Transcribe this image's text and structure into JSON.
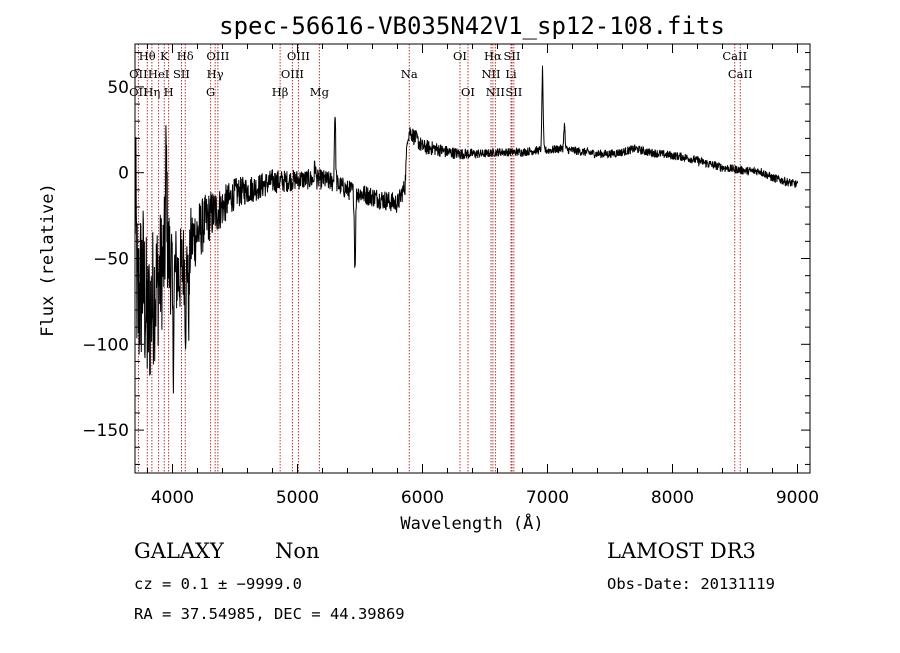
{
  "chart_data": {
    "type": "line",
    "title": "spec-56616-VB035N42V1_sp12-108.fits",
    "xlabel": "Wavelength (Å)",
    "ylabel": "Flux (relative)",
    "xlim": [
      3700,
      9100
    ],
    "ylim": [
      -175,
      75
    ],
    "xticks": [
      4000,
      5000,
      6000,
      7000,
      8000,
      9000
    ],
    "xtick_labels": [
      "4000",
      "5000",
      "6000",
      "7000",
      "8000",
      "9000"
    ],
    "yticks": [
      -150,
      -100,
      -50,
      0,
      50
    ],
    "ytick_labels": [
      "−150",
      "−100",
      "−50",
      "0",
      "50"
    ],
    "grid": false,
    "spectrum_anchors": [
      {
        "x": 3700,
        "y": -5
      },
      {
        "x": 3720,
        "y": -80
      },
      {
        "x": 3760,
        "y": -60
      },
      {
        "x": 3800,
        "y": -90
      },
      {
        "x": 3850,
        "y": -70
      },
      {
        "x": 3900,
        "y": -60
      },
      {
        "x": 3950,
        "y": -45
      },
      {
        "x": 4000,
        "y": -55
      },
      {
        "x": 4050,
        "y": -60
      },
      {
        "x": 4100,
        "y": -50
      },
      {
        "x": 4150,
        "y": -40
      },
      {
        "x": 4200,
        "y": -35
      },
      {
        "x": 4300,
        "y": -25
      },
      {
        "x": 4400,
        "y": -20
      },
      {
        "x": 4500,
        "y": -12
      },
      {
        "x": 4600,
        "y": -10
      },
      {
        "x": 4700,
        "y": -8
      },
      {
        "x": 4800,
        "y": -5
      },
      {
        "x": 4900,
        "y": -5
      },
      {
        "x": 5000,
        "y": -4
      },
      {
        "x": 5100,
        "y": -4
      },
      {
        "x": 5200,
        "y": -4
      },
      {
        "x": 5300,
        "y": -6
      },
      {
        "x": 5400,
        "y": -10
      },
      {
        "x": 5500,
        "y": -12
      },
      {
        "x": 5600,
        "y": -14
      },
      {
        "x": 5700,
        "y": -16
      },
      {
        "x": 5800,
        "y": -18
      },
      {
        "x": 5860,
        "y": -8
      },
      {
        "x": 5880,
        "y": 22
      },
      {
        "x": 5900,
        "y": 24
      },
      {
        "x": 6000,
        "y": 15
      },
      {
        "x": 6100,
        "y": 14
      },
      {
        "x": 6200,
        "y": 12
      },
      {
        "x": 6300,
        "y": 11
      },
      {
        "x": 6400,
        "y": 11
      },
      {
        "x": 6500,
        "y": 11
      },
      {
        "x": 6600,
        "y": 12
      },
      {
        "x": 6700,
        "y": 12
      },
      {
        "x": 6800,
        "y": 12
      },
      {
        "x": 6900,
        "y": 13
      },
      {
        "x": 7000,
        "y": 13
      },
      {
        "x": 7100,
        "y": 14
      },
      {
        "x": 7200,
        "y": 13
      },
      {
        "x": 7300,
        "y": 12
      },
      {
        "x": 7400,
        "y": 11
      },
      {
        "x": 7500,
        "y": 11
      },
      {
        "x": 7600,
        "y": 12
      },
      {
        "x": 7700,
        "y": 14
      },
      {
        "x": 7800,
        "y": 12
      },
      {
        "x": 7900,
        "y": 11
      },
      {
        "x": 8000,
        "y": 10
      },
      {
        "x": 8100,
        "y": 9
      },
      {
        "x": 8200,
        "y": 7
      },
      {
        "x": 8300,
        "y": 5
      },
      {
        "x": 8400,
        "y": 3
      },
      {
        "x": 8500,
        "y": 2
      },
      {
        "x": 8600,
        "y": 1
      },
      {
        "x": 8700,
        "y": 1
      },
      {
        "x": 8800,
        "y": -3
      },
      {
        "x": 8900,
        "y": -5
      },
      {
        "x": 9000,
        "y": -7
      }
    ],
    "spectrum_features": [
      {
        "x": 3950,
        "y": 10
      },
      {
        "x": 4005,
        "y": -105
      },
      {
        "x": 4105,
        "y": -85
      },
      {
        "x": 4130,
        "y": -80
      },
      {
        "x": 5140,
        "y": 5
      },
      {
        "x": 5300,
        "y": 36
      },
      {
        "x": 5460,
        "y": -55
      },
      {
        "x": 6960,
        "y": 60
      },
      {
        "x": 7135,
        "y": 28
      }
    ],
    "spectrum_noise": [
      {
        "x": 3700,
        "amp": 55
      },
      {
        "x": 4000,
        "amp": 30
      },
      {
        "x": 4200,
        "amp": 18
      },
      {
        "x": 4500,
        "amp": 9
      },
      {
        "x": 5000,
        "amp": 6
      },
      {
        "x": 5800,
        "amp": 6
      },
      {
        "x": 5900,
        "amp": 5
      },
      {
        "x": 6500,
        "amp": 2.5
      },
      {
        "x": 9100,
        "amp": 2.5
      }
    ],
    "emission_lines": [
      {
        "name": "OII",
        "x": 3727,
        "row": 3
      },
      {
        "name": "OII",
        "x": 3727,
        "row": 2
      },
      {
        "name": "Hθ",
        "x": 3798,
        "row": 1
      },
      {
        "name": "Hη",
        "x": 3835,
        "row": 3
      },
      {
        "name": "K",
        "x": 3934,
        "row": 1
      },
      {
        "name": "HeI",
        "x": 3889,
        "row": 2
      },
      {
        "name": "H",
        "x": 3969,
        "row": 3
      },
      {
        "name": "Hδ",
        "x": 4102,
        "row": 1
      },
      {
        "name": "SII",
        "x": 4072,
        "row": 2
      },
      {
        "name": "G",
        "x": 4305,
        "row": 3
      },
      {
        "name": "OIII",
        "x": 4363,
        "row": 1
      },
      {
        "name": "Hγ",
        "x": 4341,
        "row": 2
      },
      {
        "name": "Hβ",
        "x": 4861,
        "row": 3
      },
      {
        "name": "OIII",
        "x": 5007,
        "row": 1
      },
      {
        "name": "OIII",
        "x": 4959,
        "row": 2
      },
      {
        "name": "Mg",
        "x": 5175,
        "row": 3
      },
      {
        "name": "Na",
        "x": 5894,
        "row": 2
      },
      {
        "name": "OI",
        "x": 6300,
        "row": 1
      },
      {
        "name": "OI",
        "x": 6364,
        "row": 3
      },
      {
        "name": "Hα",
        "x": 6563,
        "row": 1
      },
      {
        "name": "NII",
        "x": 6548,
        "row": 2
      },
      {
        "name": "NII",
        "x": 6583,
        "row": 3
      },
      {
        "name": "SII",
        "x": 6716,
        "row": 1
      },
      {
        "name": "Li",
        "x": 6708,
        "row": 2
      },
      {
        "name": "SII",
        "x": 6731,
        "row": 3
      },
      {
        "name": "CaII",
        "x": 8498,
        "row": 1
      },
      {
        "name": "CaII",
        "x": 8542,
        "row": 2
      }
    ],
    "line_color": "#000000",
    "marker_line_color": "#b22222"
  },
  "footer": {
    "object_class": "GALAXY",
    "subclass": "Non",
    "survey": "LAMOST DR3",
    "cz": "cz = 0.1 ± −9999.0",
    "obs_date": "Obs-Date: 20131119",
    "coords": "RA =  37.54985, DEC =  44.39869"
  }
}
